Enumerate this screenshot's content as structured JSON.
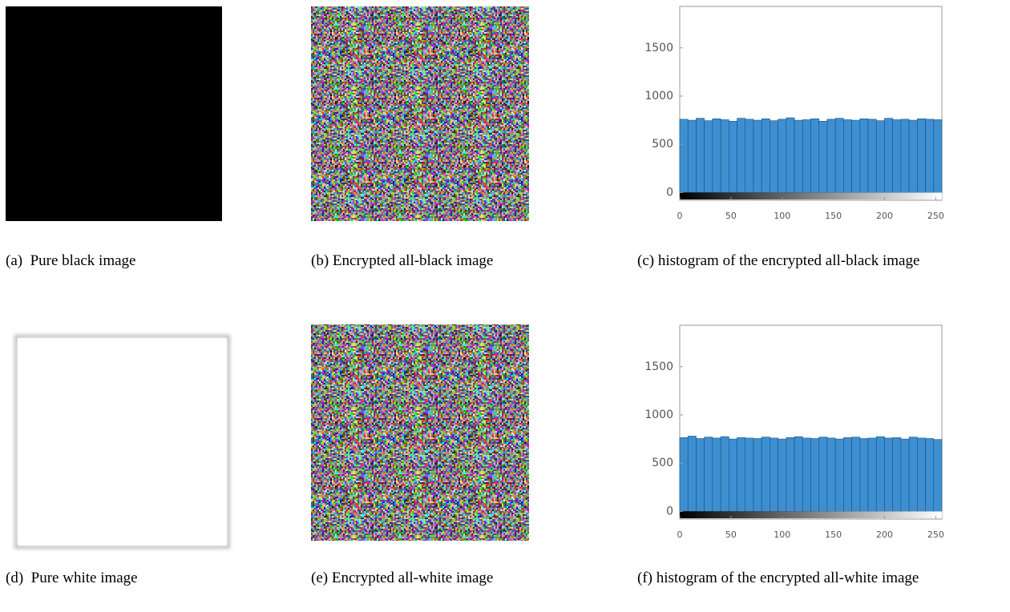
{
  "panels": [
    {
      "caption": "(a)  Pure black image"
    },
    {
      "caption": "(b) Encrypted all-black image"
    },
    {
      "caption": "(c) histogram of the encrypted all-black image"
    },
    {
      "caption": "(d)  Pure white image"
    },
    {
      "caption": "(e) Encrypted all-white image"
    },
    {
      "caption": "(f) histogram of the encrypted all-white image"
    }
  ],
  "chart_data": [
    {
      "type": "histogram",
      "color": "#3d8fd1",
      "bins": [
        0,
        8,
        16,
        24,
        32,
        40,
        48,
        56,
        64,
        72,
        80,
        88,
        96,
        104,
        112,
        120,
        128,
        136,
        144,
        152,
        160,
        168,
        176,
        184,
        192,
        200,
        208,
        216,
        224,
        232,
        240,
        248,
        256
      ],
      "values": [
        760,
        750,
        770,
        745,
        765,
        755,
        740,
        770,
        760,
        750,
        765,
        745,
        760,
        775,
        750,
        755,
        765,
        740,
        760,
        770,
        755,
        750,
        765,
        760,
        745,
        770,
        755,
        760,
        750,
        765,
        760,
        755
      ],
      "xlim": [
        0,
        256
      ],
      "xticks": [
        0,
        50,
        100,
        150,
        200,
        250
      ],
      "ylim": [
        -80,
        1930
      ],
      "yticks": [
        0,
        500,
        1000,
        1500
      ]
    },
    {
      "type": "histogram",
      "color": "#3d8fd1",
      "bins": [
        0,
        8,
        16,
        24,
        32,
        40,
        48,
        56,
        64,
        72,
        80,
        88,
        96,
        104,
        112,
        120,
        128,
        136,
        144,
        152,
        160,
        168,
        176,
        184,
        192,
        200,
        208,
        216,
        224,
        232,
        240,
        248,
        256
      ],
      "values": [
        765,
        780,
        755,
        770,
        760,
        775,
        750,
        765,
        760,
        755,
        770,
        760,
        750,
        765,
        775,
        760,
        755,
        770,
        760,
        750,
        765,
        770,
        755,
        760,
        775,
        760,
        765,
        750,
        770,
        760,
        755,
        745
      ],
      "xlim": [
        0,
        256
      ],
      "xticks": [
        0,
        50,
        100,
        150,
        200,
        250
      ],
      "ylim": [
        -80,
        1930
      ],
      "yticks": [
        0,
        500,
        1000,
        1500
      ]
    }
  ]
}
